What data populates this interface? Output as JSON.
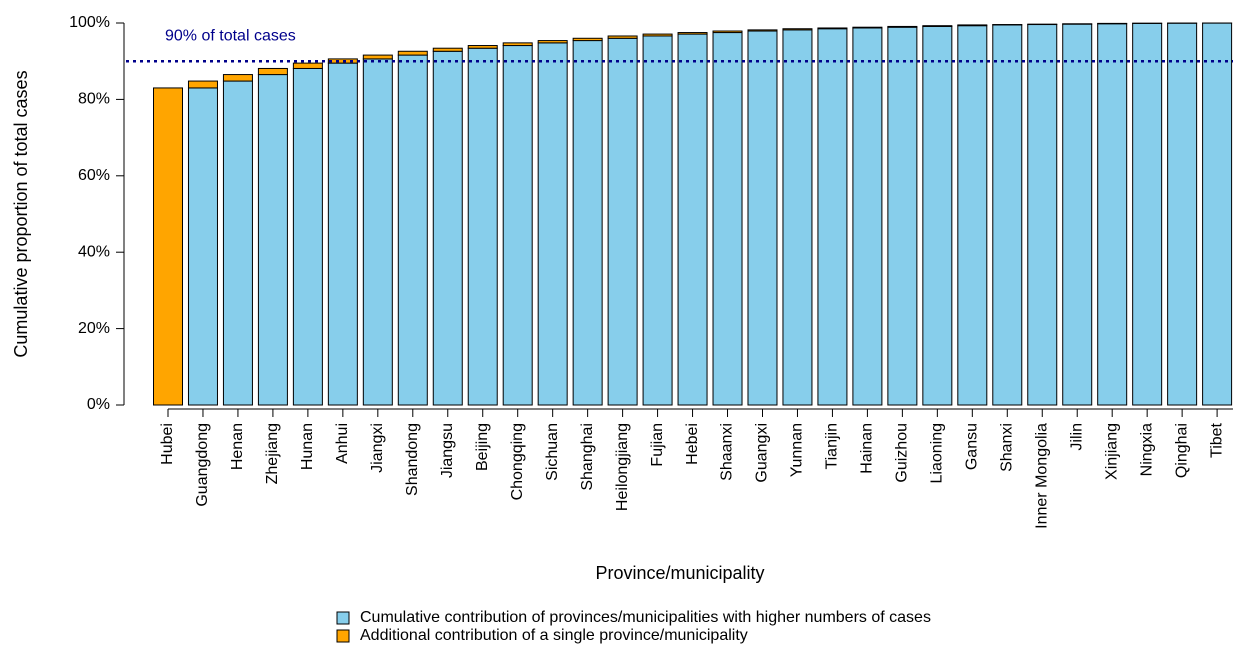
{
  "chart_data": {
    "type": "stacked_bar",
    "x_label": "Province/municipality",
    "y_label": "Cumulative proportion of total cases",
    "categories": [
      "Hubei",
      "Guangdong",
      "Henan",
      "Zhejiang",
      "Hunan",
      "Anhui",
      "Jiangxi",
      "Shandong",
      "Jiangsu",
      "Beijing",
      "Chongqing",
      "Sichuan",
      "Shanghai",
      "Heilongjiang",
      "Fujian",
      "Hebei",
      "Shaanxi",
      "Guangxi",
      "Yunnan",
      "Tianjin",
      "Hainan",
      "Guizhou",
      "Liaoning",
      "Gansu",
      "Shanxi",
      "Inner Mongolia",
      "Jilin",
      "Xinjiang",
      "Ningxia",
      "Qinghai",
      "Tibet"
    ],
    "series": [
      {
        "name": "Cumulative contribution of provinces/municipalities with higher numbers of cases",
        "color": "#87ceeb",
        "values": [
          0,
          83.0,
          84.8,
          86.5,
          88.1,
          89.5,
          90.6,
          91.6,
          92.6,
          93.4,
          94.1,
          94.8,
          95.4,
          96.0,
          96.6,
          97.1,
          97.5,
          97.9,
          98.2,
          98.5,
          98.7,
          98.9,
          99.1,
          99.3,
          99.5,
          99.6,
          99.7,
          99.8,
          99.9,
          99.95,
          99.98
        ]
      },
      {
        "name": "Additional contribution of a single province/municipality",
        "color": "#ffa500",
        "values": [
          83.0,
          1.8,
          1.7,
          1.6,
          1.4,
          1.1,
          1.0,
          1.0,
          0.8,
          0.7,
          0.7,
          0.6,
          0.6,
          0.6,
          0.5,
          0.4,
          0.4,
          0.3,
          0.3,
          0.2,
          0.2,
          0.2,
          0.2,
          0.2,
          0.1,
          0.1,
          0.1,
          0.1,
          0.05,
          0.03,
          0.02
        ]
      }
    ],
    "ylim": [
      0,
      100
    ],
    "yticks": [
      {
        "value": 0,
        "label": "0%"
      },
      {
        "value": 20,
        "label": "20%"
      },
      {
        "value": 40,
        "label": "40%"
      },
      {
        "value": 60,
        "label": "60%"
      },
      {
        "value": 80,
        "label": "80%"
      },
      {
        "value": 100,
        "label": "100%"
      }
    ],
    "reference_line": {
      "value": 90,
      "label": "90% of total cases",
      "color": "#00008b"
    }
  }
}
